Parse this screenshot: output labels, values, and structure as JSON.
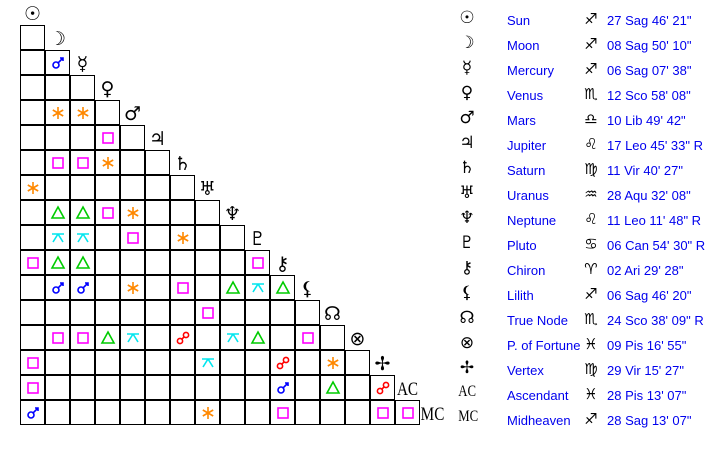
{
  "aspect_colors": {
    "conjunction": "#0000ff",
    "sextile": "#ff8800",
    "square": "#ff00ff",
    "trine": "#00cc00",
    "quincunx": "#00e5ee",
    "opposition": "#ff0000"
  },
  "planets": [
    {
      "symbol": "☉",
      "name": "Sun",
      "sign": "♐",
      "position": "27 Sag 46' 21\""
    },
    {
      "symbol": "☽",
      "name": "Moon",
      "sign": "♐",
      "position": "08 Sag 50' 10\""
    },
    {
      "symbol": "☿",
      "name": "Mercury",
      "sign": "♐",
      "position": "06 Sag 07' 38\""
    },
    {
      "symbol": "♀",
      "name": "Venus",
      "sign": "♏",
      "position": "12 Sco 58' 08\""
    },
    {
      "symbol": "♂",
      "name": "Mars",
      "sign": "♎",
      "position": "10 Lib 49' 42\""
    },
    {
      "symbol": "♃",
      "name": "Jupiter",
      "sign": "♌",
      "position": "17 Leo 45' 33\" R"
    },
    {
      "symbol": "♄",
      "name": "Saturn",
      "sign": "♍",
      "position": "11 Vir 40' 27\""
    },
    {
      "symbol": "♅",
      "name": "Uranus",
      "sign": "♒",
      "position": "28 Aqu 32' 08\""
    },
    {
      "symbol": "♆",
      "name": "Neptune",
      "sign": "♌",
      "position": "11 Leo 11' 48\" R"
    },
    {
      "symbol": "♇",
      "name": "Pluto",
      "sign": "♋",
      "position": "06 Can 54' 30\" R"
    },
    {
      "symbol": "⚷",
      "name": "Chiron",
      "sign": "♈",
      "position": "02 Ari 29' 28\""
    },
    {
      "symbol": "⚸",
      "name": "Lilith",
      "sign": "♐",
      "position": "06 Sag 46' 20\""
    },
    {
      "symbol": "☊",
      "name": "True Node",
      "sign": "♏",
      "position": "24 Sco 38' 09\" R"
    },
    {
      "symbol": "⊗",
      "name": "P. of Fortune",
      "sign": "♓",
      "position": "09 Pis 16' 55\""
    },
    {
      "symbol": "✢",
      "name": "Vertex",
      "sign": "♍",
      "position": "29 Vir 15' 27\""
    },
    {
      "symbol": "AC",
      "name": "Ascendant",
      "sign": "♓",
      "position": "28 Pis 13' 07\""
    },
    {
      "symbol": "MC",
      "name": "Midheaven",
      "sign": "♐",
      "position": "28 Sag 13' 07\""
    }
  ],
  "aspects": [
    {
      "planet": 2,
      "with": 1,
      "type": "conjunction"
    },
    {
      "planet": 4,
      "with": 1,
      "type": "sextile"
    },
    {
      "planet": 4,
      "with": 2,
      "type": "sextile"
    },
    {
      "planet": 5,
      "with": 3,
      "type": "square"
    },
    {
      "planet": 6,
      "with": 1,
      "type": "square"
    },
    {
      "planet": 6,
      "with": 2,
      "type": "square"
    },
    {
      "planet": 6,
      "with": 3,
      "type": "sextile"
    },
    {
      "planet": 7,
      "with": 0,
      "type": "sextile"
    },
    {
      "planet": 8,
      "with": 1,
      "type": "trine"
    },
    {
      "planet": 8,
      "with": 2,
      "type": "trine"
    },
    {
      "planet": 8,
      "with": 3,
      "type": "square"
    },
    {
      "planet": 8,
      "with": 4,
      "type": "sextile"
    },
    {
      "planet": 9,
      "with": 1,
      "type": "quincunx"
    },
    {
      "planet": 9,
      "with": 2,
      "type": "quincunx"
    },
    {
      "planet": 9,
      "with": 4,
      "type": "square"
    },
    {
      "planet": 9,
      "with": 6,
      "type": "sextile"
    },
    {
      "planet": 10,
      "with": 0,
      "type": "square"
    },
    {
      "planet": 10,
      "with": 1,
      "type": "trine"
    },
    {
      "planet": 10,
      "with": 2,
      "type": "trine"
    },
    {
      "planet": 10,
      "with": 9,
      "type": "square"
    },
    {
      "planet": 11,
      "with": 1,
      "type": "conjunction"
    },
    {
      "planet": 11,
      "with": 2,
      "type": "conjunction"
    },
    {
      "planet": 11,
      "with": 4,
      "type": "sextile"
    },
    {
      "planet": 11,
      "with": 6,
      "type": "square"
    },
    {
      "planet": 11,
      "with": 8,
      "type": "trine"
    },
    {
      "planet": 11,
      "with": 9,
      "type": "quincunx"
    },
    {
      "planet": 11,
      "with": 10,
      "type": "trine"
    },
    {
      "planet": 12,
      "with": 7,
      "type": "square"
    },
    {
      "planet": 13,
      "with": 1,
      "type": "square"
    },
    {
      "planet": 13,
      "with": 2,
      "type": "square"
    },
    {
      "planet": 13,
      "with": 3,
      "type": "trine"
    },
    {
      "planet": 13,
      "with": 4,
      "type": "quincunx"
    },
    {
      "planet": 13,
      "with": 6,
      "type": "opposition"
    },
    {
      "planet": 13,
      "with": 8,
      "type": "quincunx"
    },
    {
      "planet": 13,
      "with": 9,
      "type": "trine"
    },
    {
      "planet": 13,
      "with": 11,
      "type": "square"
    },
    {
      "planet": 14,
      "with": 0,
      "type": "square"
    },
    {
      "planet": 14,
      "with": 7,
      "type": "quincunx"
    },
    {
      "planet": 14,
      "with": 10,
      "type": "opposition"
    },
    {
      "planet": 14,
      "with": 12,
      "type": "sextile"
    },
    {
      "planet": 15,
      "with": 0,
      "type": "square"
    },
    {
      "planet": 15,
      "with": 10,
      "type": "conjunction"
    },
    {
      "planet": 15,
      "with": 12,
      "type": "trine"
    },
    {
      "planet": 15,
      "with": 14,
      "type": "opposition"
    },
    {
      "planet": 16,
      "with": 0,
      "type": "conjunction"
    },
    {
      "planet": 16,
      "with": 7,
      "type": "sextile"
    },
    {
      "planet": 16,
      "with": 10,
      "type": "square"
    },
    {
      "planet": 16,
      "with": 14,
      "type": "square"
    },
    {
      "planet": 16,
      "with": 15,
      "type": "square"
    }
  ]
}
